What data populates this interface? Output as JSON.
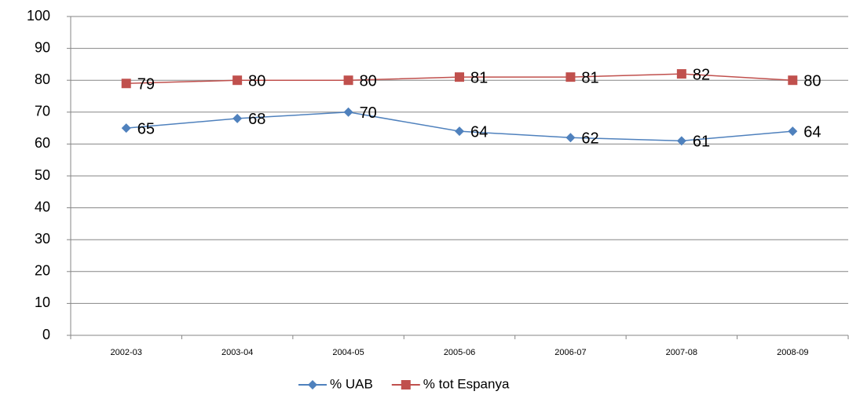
{
  "chart_data": {
    "type": "line",
    "categories": [
      "2002-03",
      "2003-04",
      "2004-05",
      "2005-06",
      "2006-07",
      "2007-08",
      "2008-09"
    ],
    "series": [
      {
        "name": "% UAB",
        "color": "#4f81bd",
        "marker": "diamond",
        "values": [
          65,
          68,
          70,
          64,
          62,
          61,
          64
        ]
      },
      {
        "name": "% tot Espanya",
        "color": "#c0504d",
        "marker": "square",
        "values": [
          79,
          80,
          80,
          81,
          81,
          82,
          80
        ]
      }
    ],
    "ylim": [
      0,
      100
    ],
    "yticks": [
      0,
      10,
      20,
      30,
      40,
      50,
      60,
      70,
      80,
      90,
      100
    ],
    "grid": true,
    "legend": "bottom"
  }
}
